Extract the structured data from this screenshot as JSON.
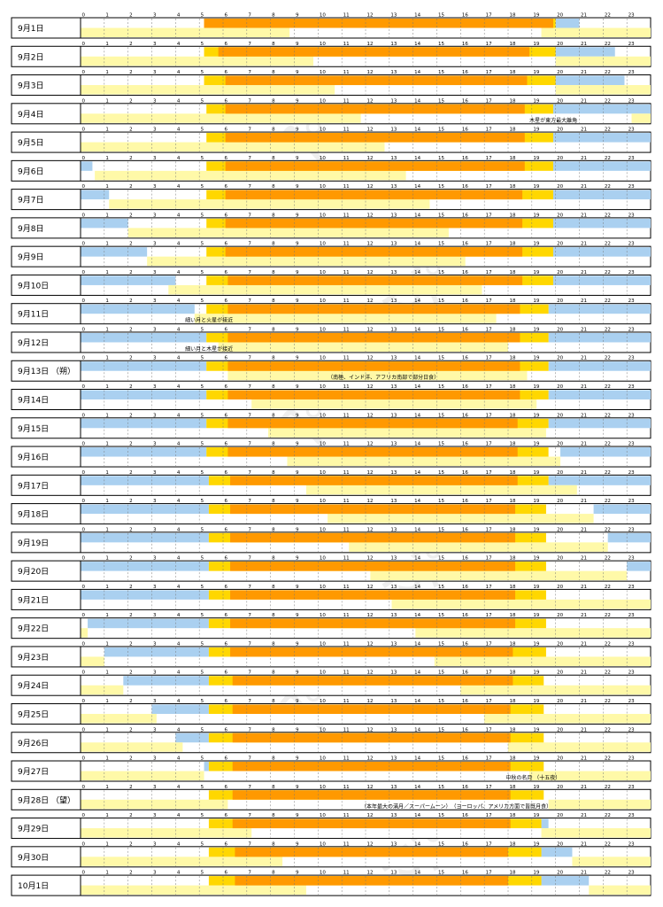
{
  "chart_data": {
    "type": "gantt",
    "x_ticks": [
      0,
      1,
      2,
      3,
      4,
      5,
      6,
      7,
      8,
      9,
      10,
      11,
      12,
      13,
      14,
      15,
      16,
      17,
      18,
      19,
      20,
      21,
      22,
      23
    ],
    "xlim": [
      0,
      24
    ],
    "colors": {
      "night": "#aad0f0",
      "moon": "#fff9a8",
      "twilight": "#ffd700",
      "day": "#ff9900"
    },
    "rows": [
      {
        "label": "9月1日",
        "sun": [
          5.2,
          20.0
        ],
        "day": [
          5.2,
          19.9
        ],
        "moon": [
          [
            0,
            8.8
          ],
          [
            19.4,
            24
          ]
        ],
        "night": [
          [
            20.0,
            21.0
          ]
        ],
        "note": ""
      },
      {
        "label": "9月2日",
        "sun": [
          5.2,
          20.0
        ],
        "day": [
          5.8,
          18.9
        ],
        "moon": [
          [
            0,
            9.8
          ],
          [
            20.0,
            24
          ]
        ],
        "night": [
          [
            20.0,
            22.5
          ]
        ],
        "note": ""
      },
      {
        "label": "9月3日",
        "sun": [
          5.2,
          20.0
        ],
        "day": [
          6.1,
          18.8
        ],
        "moon": [
          [
            0,
            10.7
          ],
          [
            20.0,
            24
          ]
        ],
        "night": [
          [
            20.0,
            22.9
          ]
        ],
        "note": ""
      },
      {
        "label": "9月4日",
        "sun": [
          5.3,
          19.9
        ],
        "day": [
          6.1,
          18.7
        ],
        "moon": [
          [
            0,
            11.8
          ],
          [
            23.2,
            24
          ]
        ],
        "night": [
          [
            19.9,
            24
          ]
        ],
        "note": "木星が東方最大離角"
      },
      {
        "label": "9月5日",
        "sun": [
          5.3,
          19.9
        ],
        "day": [
          6.1,
          18.7
        ],
        "moon": [
          [
            0,
            12.8
          ]
        ],
        "night": [
          [
            19.9,
            24
          ]
        ],
        "note": ""
      },
      {
        "label": "9月6日",
        "sun": [
          5.3,
          19.9
        ],
        "day": [
          6.1,
          18.7
        ],
        "moon": [
          [
            0.6,
            13.7
          ]
        ],
        "night": [
          [
            0,
            0.5
          ],
          [
            19.9,
            24
          ]
        ],
        "note": ""
      },
      {
        "label": "9月7日",
        "sun": [
          5.3,
          19.9
        ],
        "day": [
          6.1,
          18.6
        ],
        "moon": [
          [
            1.2,
            14.7
          ]
        ],
        "night": [
          [
            0,
            1.2
          ],
          [
            19.9,
            24
          ]
        ],
        "note": ""
      },
      {
        "label": "9月8日",
        "sun": [
          5.3,
          19.9
        ],
        "day": [
          6.1,
          18.6
        ],
        "moon": [
          [
            2.0,
            15.5
          ]
        ],
        "night": [
          [
            0,
            2.0
          ],
          [
            19.9,
            24
          ]
        ],
        "note": ""
      },
      {
        "label": "9月9日",
        "sun": [
          5.3,
          19.9
        ],
        "day": [
          6.1,
          18.6
        ],
        "moon": [
          [
            2.8,
            16.2
          ]
        ],
        "night": [
          [
            0,
            2.8
          ],
          [
            19.9,
            24
          ]
        ],
        "note": ""
      },
      {
        "label": "9月10日",
        "sun": [
          5.3,
          19.9
        ],
        "day": [
          6.2,
          18.6
        ],
        "moon": [
          [
            3.7,
            16.9
          ]
        ],
        "night": [
          [
            0,
            4.0
          ],
          [
            19.9,
            24
          ]
        ],
        "note": ""
      },
      {
        "label": "9月11日",
        "sun": [
          5.3,
          19.7
        ],
        "day": [
          6.2,
          18.5
        ],
        "moon": [
          [
            4.8,
            17.5
          ]
        ],
        "night": [
          [
            0,
            4.8
          ],
          [
            19.7,
            24
          ]
        ],
        "note": "細い月と火星が接近"
      },
      {
        "label": "9月12日",
        "sun": [
          5.3,
          19.7
        ],
        "day": [
          6.2,
          18.5
        ],
        "moon": [
          [
            5.8,
            18.0
          ]
        ],
        "night": [
          [
            0,
            5.3
          ],
          [
            19.7,
            24
          ]
        ],
        "note": "細い月と木星が接近"
      },
      {
        "label": "9月13日 （朔）",
        "sun": [
          5.3,
          19.7
        ],
        "day": [
          6.2,
          18.5
        ],
        "moon": [
          [
            6.2,
            18.8
          ]
        ],
        "night": [
          [
            0,
            5.3
          ],
          [
            19.7,
            24
          ]
        ],
        "note": "（南極、インド洋、アフリカ南部で部分日食）"
      },
      {
        "label": "9月14日",
        "sun": [
          5.3,
          19.7
        ],
        "day": [
          6.2,
          18.5
        ],
        "moon": [
          [
            7.2,
            19.2
          ]
        ],
        "night": [
          [
            0,
            5.3
          ],
          [
            19.7,
            24
          ]
        ],
        "note": ""
      },
      {
        "label": "9月15日",
        "sun": [
          5.3,
          19.7
        ],
        "day": [
          6.2,
          18.4
        ],
        "moon": [
          [
            7.9,
            19.6
          ]
        ],
        "night": [
          [
            0,
            5.3
          ],
          [
            19.7,
            24
          ]
        ],
        "note": ""
      },
      {
        "label": "9月16日",
        "sun": [
          5.3,
          19.7
        ],
        "day": [
          6.2,
          18.4
        ],
        "moon": [
          [
            8.7,
            20.2
          ]
        ],
        "night": [
          [
            0,
            5.3
          ],
          [
            20.2,
            24
          ]
        ],
        "note": ""
      },
      {
        "label": "9月17日",
        "sun": [
          5.4,
          19.7
        ],
        "day": [
          6.3,
          18.4
        ],
        "moon": [
          [
            9.5,
            20.9
          ]
        ],
        "night": [
          [
            0,
            5.4
          ],
          [
            19.7,
            24
          ]
        ],
        "note": ""
      },
      {
        "label": "9月18日",
        "sun": [
          5.4,
          19.6
        ],
        "day": [
          6.3,
          18.3
        ],
        "moon": [
          [
            10.4,
            21.6
          ]
        ],
        "night": [
          [
            0,
            5.4
          ],
          [
            21.6,
            24
          ]
        ],
        "note": ""
      },
      {
        "label": "9月19日",
        "sun": [
          5.4,
          19.6
        ],
        "day": [
          6.3,
          18.3
        ],
        "moon": [
          [
            11.3,
            22.2
          ]
        ],
        "night": [
          [
            0,
            5.4
          ],
          [
            22.2,
            24
          ]
        ],
        "note": ""
      },
      {
        "label": "9月20日",
        "sun": [
          5.4,
          19.6
        ],
        "day": [
          6.3,
          18.3
        ],
        "moon": [
          [
            12.2,
            23.0
          ]
        ],
        "night": [
          [
            0,
            5.4
          ],
          [
            23.0,
            24
          ]
        ],
        "note": ""
      },
      {
        "label": "9月21日",
        "sun": [
          5.4,
          19.6
        ],
        "day": [
          6.3,
          18.3
        ],
        "moon": [
          [
            13.1,
            24
          ]
        ],
        "night": [
          [
            0,
            5.4
          ]
        ],
        "note": ""
      },
      {
        "label": "9月22日",
        "sun": [
          5.4,
          19.6
        ],
        "day": [
          6.3,
          18.3
        ],
        "moon": [
          [
            0,
            0.3
          ],
          [
            14.1,
            24
          ]
        ],
        "night": [
          [
            0.3,
            5.4
          ]
        ],
        "note": ""
      },
      {
        "label": "9月23日",
        "sun": [
          5.4,
          19.6
        ],
        "day": [
          6.3,
          18.2
        ],
        "moon": [
          [
            0,
            1.0
          ],
          [
            14.9,
            24
          ]
        ],
        "night": [
          [
            1.0,
            5.4
          ]
        ],
        "note": ""
      },
      {
        "label": "9月24日",
        "sun": [
          5.4,
          19.5
        ],
        "day": [
          6.4,
          18.2
        ],
        "moon": [
          [
            0,
            1.8
          ],
          [
            16.0,
            24
          ]
        ],
        "night": [
          [
            1.8,
            5.4
          ]
        ],
        "note": ""
      },
      {
        "label": "9月25日",
        "sun": [
          5.4,
          19.5
        ],
        "day": [
          6.4,
          18.1
        ],
        "moon": [
          [
            0,
            3.2
          ],
          [
            17.0,
            24
          ]
        ],
        "night": [
          [
            3.0,
            5.4
          ]
        ],
        "note": ""
      },
      {
        "label": "9月26日",
        "sun": [
          5.4,
          19.5
        ],
        "day": [
          6.4,
          18.1
        ],
        "moon": [
          [
            0,
            4.3
          ],
          [
            18.0,
            24
          ]
        ],
        "night": [
          [
            4.0,
            5.4
          ]
        ],
        "note": ""
      },
      {
        "label": "9月27日",
        "sun": [
          5.4,
          19.5
        ],
        "day": [
          6.4,
          18.1
        ],
        "moon": [
          [
            0,
            5.2
          ],
          [
            18.9,
            24
          ]
        ],
        "night": [
          [
            5.2,
            5.4
          ]
        ],
        "note": "中秋の名月 （十五夜）"
      },
      {
        "label": "9月28日 （望）",
        "sun": [
          5.4,
          19.5
        ],
        "day": [
          6.4,
          18.1
        ],
        "moon": [
          [
            0,
            6.2
          ],
          [
            19.7,
            24
          ]
        ],
        "night": [],
        "note": "（本年最大の満月／スーパームーン）　（ヨーロッパ、アメリカ方面で皆既月食）"
      },
      {
        "label": "9月29日",
        "sun": [
          5.4,
          19.4
        ],
        "day": [
          6.4,
          18.1
        ],
        "moon": [
          [
            0,
            7.2
          ],
          [
            19.4,
            24
          ]
        ],
        "night": [
          [
            19.4,
            19.7
          ]
        ],
        "note": ""
      },
      {
        "label": "9月30日",
        "sun": [
          5.4,
          19.4
        ],
        "day": [
          6.5,
          18.0
        ],
        "moon": [
          [
            0,
            8.5
          ],
          [
            20.7,
            24
          ]
        ],
        "night": [
          [
            19.4,
            20.7
          ]
        ],
        "note": ""
      },
      {
        "label": "10月1日",
        "sun": [
          5.4,
          19.4
        ],
        "day": [
          6.5,
          18.0
        ],
        "moon": [
          [
            0,
            9.5
          ],
          [
            21.4,
            24
          ]
        ],
        "night": [
          [
            19.4,
            21.4
          ]
        ],
        "note": ""
      }
    ]
  }
}
